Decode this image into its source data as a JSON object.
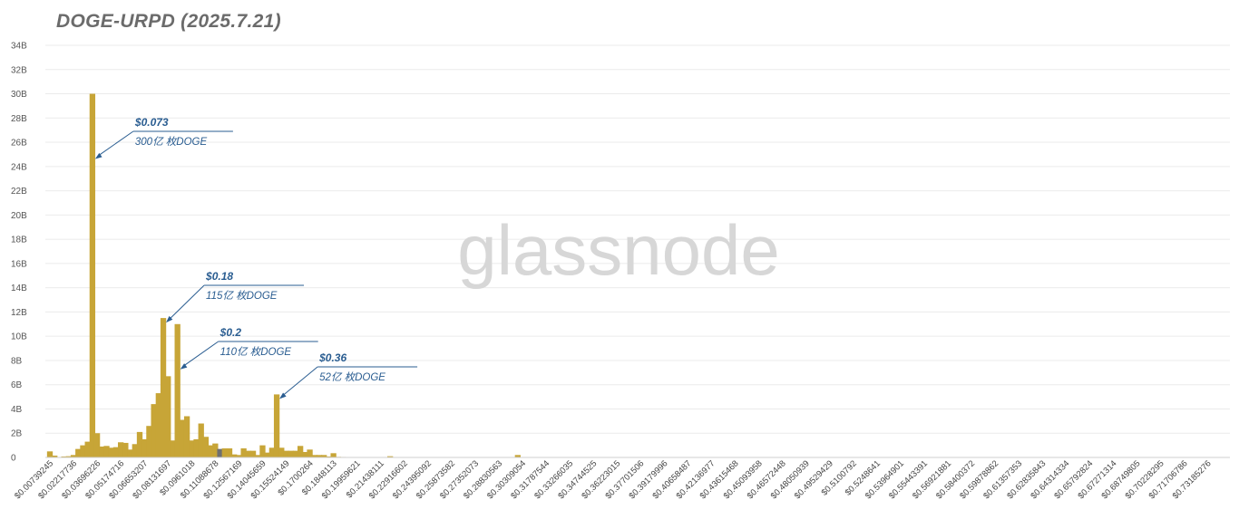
{
  "title": "DOGE-URPD  (2025.7.21)",
  "watermark": "glassnode",
  "colors": {
    "bar": "#c7a537",
    "bar_highlight": "#6f6f6f",
    "annotation": "#2a5d91",
    "grid": "#ebebeb",
    "title": "#6b6b6b"
  },
  "chart_data": {
    "type": "bar",
    "title": "DOGE-URPD  (2025.7.21)",
    "xlabel": "",
    "ylabel": "",
    "ylim": [
      0,
      34
    ],
    "y_unit": "B",
    "grid": true,
    "y_ticks": [
      "0",
      "2B",
      "4B",
      "6B",
      "8B",
      "10B",
      "12B",
      "14B",
      "16B",
      "18B",
      "20B",
      "22B",
      "24B",
      "26B",
      "28B",
      "30B",
      "32B",
      "34B"
    ],
    "x_tick_labels": [
      "$0.00739245",
      "$0.02217736",
      "$0.03696226",
      "$0.05174716",
      "$0.06653207",
      "$0.08131697",
      "$0.0961018",
      "$0.11088678",
      "$0.12567169",
      "$0.14045659",
      "$0.15524149",
      "$0.1700264",
      "$0.1848113",
      "$0.19959621",
      "$0.21438111",
      "$0.22916602",
      "$0.24395092",
      "$0.25873582",
      "$0.27352073",
      "$0.28830563",
      "$0.30309054",
      "$0.31787544",
      "$0.33266035",
      "$0.34744525",
      "$0.36223015",
      "$0.37701506",
      "$0.39179996",
      "$0.40658487",
      "$0.42136977",
      "$0.43615468",
      "$0.45093958",
      "$0.46572448",
      "$0.48050939",
      "$0.49529429",
      "$0.5100792",
      "$0.5248641",
      "$0.53964901",
      "$0.55443391",
      "$0.56921881",
      "$0.58400372",
      "$0.59878862",
      "$0.61357353",
      "$0.62835843",
      "$0.64314334",
      "$0.65792824",
      "$0.67271314",
      "$0.68749805",
      "$0.70228295",
      "$0.71706786",
      "$0.73185276"
    ],
    "bin_width": 0.0073925,
    "x_start": 0.00739245,
    "values": [
      0.5,
      0.15,
      0.02,
      0.08,
      0.1,
      0.2,
      0.7,
      1.0,
      1.3,
      30.0,
      2.0,
      0.9,
      0.95,
      0.8,
      0.85,
      1.25,
      1.2,
      0.65,
      1.1,
      2.1,
      1.5,
      2.6,
      4.4,
      5.3,
      11.5,
      6.7,
      1.4,
      11.0,
      3.1,
      3.4,
      1.4,
      1.5,
      2.8,
      1.7,
      1.0,
      1.15,
      0.7,
      0.75,
      0.75,
      0.25,
      0.2,
      0.75,
      0.55,
      0.55,
      0.2,
      1.0,
      0.4,
      0.8,
      5.2,
      0.8,
      0.55,
      0.55,
      0.55,
      0.95,
      0.45,
      0.65,
      0.2,
      0.2,
      0.2,
      0.08,
      0.35,
      0.05,
      0.04,
      0.01,
      0.01,
      0.0,
      0.0,
      0.0,
      0.0,
      0.0,
      0.0,
      0.0,
      0.1,
      0.0,
      0.0,
      0.0,
      0.0,
      0.0,
      0.0,
      0.0,
      0.0,
      0.0,
      0.0,
      0.0,
      0.0,
      0.0,
      0.0,
      0.0,
      0.0,
      0.0,
      0.0,
      0.0,
      0.0,
      0.0,
      0.0,
      0.0,
      0.0,
      0.0,
      0.0,
      0.2,
      0.0,
      0.0,
      0.0,
      0.0,
      0.0,
      0.0,
      0.0,
      0.0,
      0.0,
      0.0,
      0.0,
      0.0,
      0.0,
      0.0,
      0.0,
      0.0,
      0.0,
      0.0,
      0.0,
      0.0,
      0.0,
      0.0,
      0.0,
      0.0,
      0.0,
      0.0,
      0.0,
      0.0,
      0.0,
      0.0,
      0.0,
      0.0,
      0.0,
      0.0,
      0.0,
      0.0,
      0.0,
      0.0,
      0.0,
      0.0,
      0.0,
      0.0,
      0.0,
      0.0,
      0.0,
      0.0,
      0.0,
      0.0,
      0.0,
      0.0
    ],
    "highlight_index": 36,
    "annotations": [
      {
        "price": "$0.073",
        "amount": "300亿 枚DOGE",
        "bar_index": 9
      },
      {
        "price": "$0.18",
        "amount": "115亿 枚DOGE",
        "bar_index": 24
      },
      {
        "price": "$0.2",
        "amount": "110亿 枚DOGE",
        "bar_index": 27
      },
      {
        "price": "$0.36",
        "amount": "52亿 枚DOGE",
        "bar_index": 48
      }
    ]
  }
}
